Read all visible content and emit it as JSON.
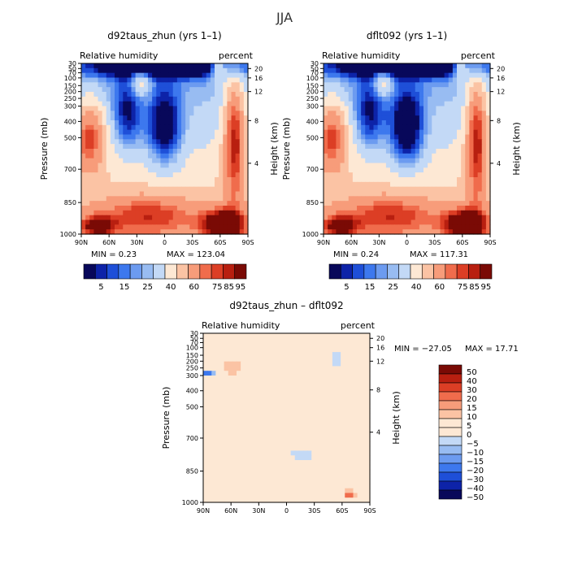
{
  "figure_title": "JJA",
  "chart_data": [
    {
      "type": "heatmap",
      "title": "d92taus_zhun (yrs 1–1)",
      "left_label": "Relative humidity",
      "right_label": "percent",
      "xlabel": "",
      "ylabel": "Pressure (mb)",
      "y2label": "Height (km)",
      "x_ticks": [
        "90N",
        "60N",
        "30N",
        "0",
        "30S",
        "60S",
        "90S"
      ],
      "y_ticks": [
        "30",
        "50",
        "70",
        "100",
        "150",
        "200",
        "250",
        "300",
        "400",
        "500",
        "700",
        "850",
        "1000"
      ],
      "y2_ticks": [
        "20",
        "16",
        "12",
        "8",
        "4"
      ],
      "min_text": "MIN =    0.23",
      "max_text": "MAX = 123.04",
      "min": 0.23,
      "max": 123.04,
      "colorbar_labels": [
        "5",
        "15",
        "25",
        "40",
        "60",
        "75",
        "85",
        "95"
      ]
    },
    {
      "type": "heatmap",
      "title": "dflt092 (yrs 1–1)",
      "left_label": "Relative humidity",
      "right_label": "percent",
      "xlabel": "",
      "ylabel": "Pressure (mb)",
      "y2label": "Height (km)",
      "x_ticks": [
        "90N",
        "60N",
        "30N",
        "0",
        "30S",
        "60S",
        "90S"
      ],
      "y_ticks": [
        "30",
        "50",
        "70",
        "100",
        "150",
        "200",
        "250",
        "300",
        "400",
        "500",
        "700",
        "850",
        "1000"
      ],
      "y2_ticks": [
        "20",
        "16",
        "12",
        "8",
        "4"
      ],
      "min_text": "MIN =    0.24",
      "max_text": "MAX = 117.31",
      "min": 0.24,
      "max": 117.31,
      "colorbar_labels": [
        "5",
        "15",
        "25",
        "40",
        "60",
        "75",
        "85",
        "95"
      ]
    },
    {
      "type": "heatmap",
      "title": "d92taus_zhun – dflt092",
      "left_label": "Relative humidity",
      "right_label": "percent",
      "xlabel": "",
      "ylabel": "Pressure (mb)",
      "y2label": "Height (km)",
      "x_ticks": [
        "90N",
        "60N",
        "30N",
        "0",
        "30S",
        "60S",
        "90S"
      ],
      "y_ticks": [
        "30",
        "50",
        "70",
        "100",
        "150",
        "200",
        "250",
        "300",
        "400",
        "500",
        "700",
        "850",
        "1000"
      ],
      "y2_ticks": [
        "20",
        "16",
        "12",
        "8",
        "4"
      ],
      "min_text": "MIN = −27.05",
      "max_text": "MAX =   17.71",
      "min": -27.05,
      "max": 17.71,
      "colorbar_labels": [
        "50",
        "40",
        "30",
        "20",
        "15",
        "10",
        "5",
        "0",
        "−5",
        "−10",
        "−15",
        "−20",
        "−30",
        "−40",
        "−50"
      ]
    }
  ],
  "colors": {
    "rh": [
      "#08085a",
      "#0d23a8",
      "#1e4fd8",
      "#3d78ee",
      "#6c9bf0",
      "#98bcf2",
      "#c3d9f6",
      "#fde8d4",
      "#fbc3a4",
      "#f79c7a",
      "#f06c4c",
      "#dc3e25",
      "#b81f10",
      "#7a0a05"
    ],
    "diff": [
      "#7a0a05",
      "#b81f10",
      "#dc3e25",
      "#f06c4c",
      "#f79c7a",
      "#fbc3a4",
      "#fde8d4",
      "#fde8d4",
      "#c3d9f6",
      "#98bcf2",
      "#6c9bf0",
      "#3d78ee",
      "#1e4fd8",
      "#0d23a8",
      "#08085a"
    ]
  }
}
